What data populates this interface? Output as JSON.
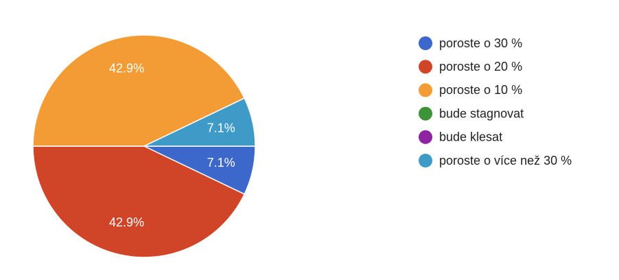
{
  "chart_data": {
    "type": "pie",
    "categories": [
      "poroste o 30 %",
      "poroste o 20 %",
      "poroste o 10 %",
      "bude stagnovat",
      "bude klesat",
      "poroste o více než 30 %"
    ],
    "values": [
      7.1,
      42.9,
      42.9,
      0,
      0,
      7.1
    ],
    "value_labels": [
      "7.1%",
      "42.9%",
      "42.9%",
      null,
      null,
      "7.1%"
    ],
    "colors": [
      "#3c67cb",
      "#d04527",
      "#f39c35",
      "#3d9337",
      "#8e24a1",
      "#3e9bc8"
    ],
    "legend": "right"
  }
}
